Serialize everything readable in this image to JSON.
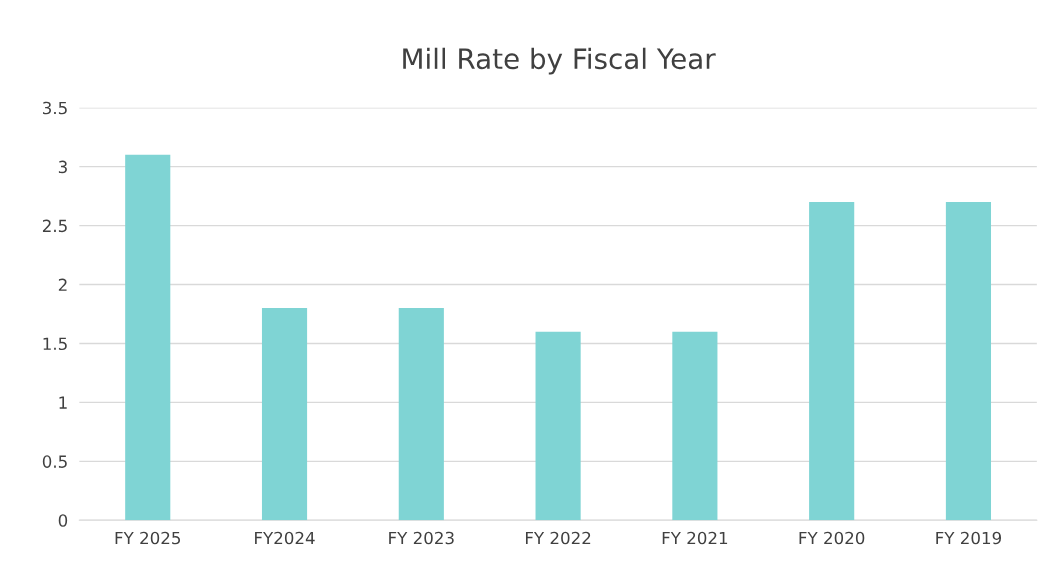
{
  "chart_data": {
    "type": "bar",
    "title": "Mill Rate by Fiscal Year",
    "categories": [
      "FY 2025",
      "FY2024",
      "FY 2023",
      "FY 2022",
      "FY 2021",
      "FY 2020",
      "FY 2019"
    ],
    "values": [
      3.1,
      1.8,
      1.8,
      1.6,
      1.6,
      2.7,
      2.7
    ],
    "color": "#7fd4d4",
    "ylim": [
      0,
      3.5
    ],
    "yticks": [
      0,
      0.5,
      1,
      1.5,
      2,
      2.5,
      3,
      3.5
    ],
    "grid": "y",
    "legend": false
  }
}
